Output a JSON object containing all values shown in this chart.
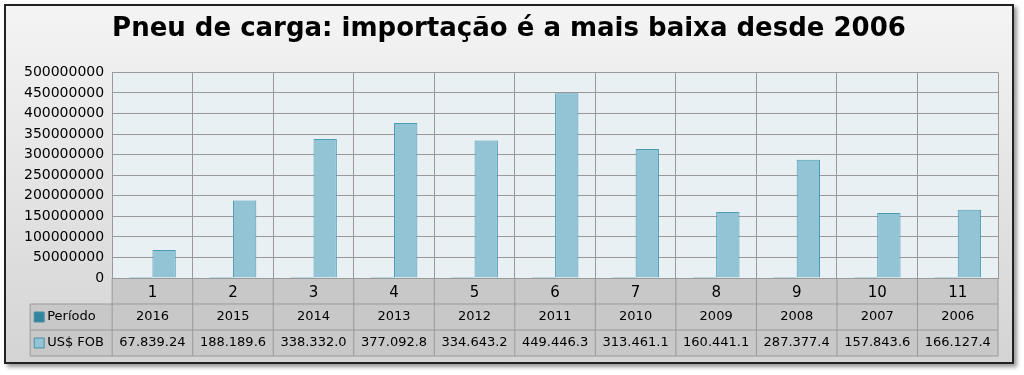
{
  "chart_data": {
    "type": "bar",
    "title": "Pneu de carga: importação é a mais baixa desde 2006",
    "categories": [
      "1",
      "2",
      "3",
      "4",
      "5",
      "6",
      "7",
      "8",
      "9",
      "10",
      "11"
    ],
    "series": [
      {
        "name": "Período",
        "color": "#31859c",
        "values": [
          2016,
          2015,
          2014,
          2013,
          2012,
          2011,
          2010,
          2009,
          2008,
          2007,
          2006
        ],
        "value_labels": [
          "2016",
          "2015",
          "2014",
          "2013",
          "2012",
          "2011",
          "2010",
          "2009",
          "2008",
          "2007",
          "2006"
        ]
      },
      {
        "name": "US$ FOB",
        "color": "#93c4d5",
        "values": [
          67839240,
          188189600,
          338332000,
          377092800,
          334643200,
          449446300,
          313461100,
          160441100,
          287377400,
          157843600,
          166127400
        ],
        "value_labels": [
          "67.839.24",
          "188.189.6",
          "338.332.0",
          "377.092.8",
          "334.643.2",
          "449.446.3",
          "313.461.1",
          "160.441.1",
          "287.377.4",
          "157.843.6",
          "166.127.4"
        ]
      }
    ],
    "ylim": [
      0,
      500000000
    ],
    "yticks": [
      0,
      50000000,
      100000000,
      150000000,
      200000000,
      250000000,
      300000000,
      350000000,
      400000000,
      450000000,
      500000000
    ],
    "grid": true,
    "legend": "bottom left"
  }
}
